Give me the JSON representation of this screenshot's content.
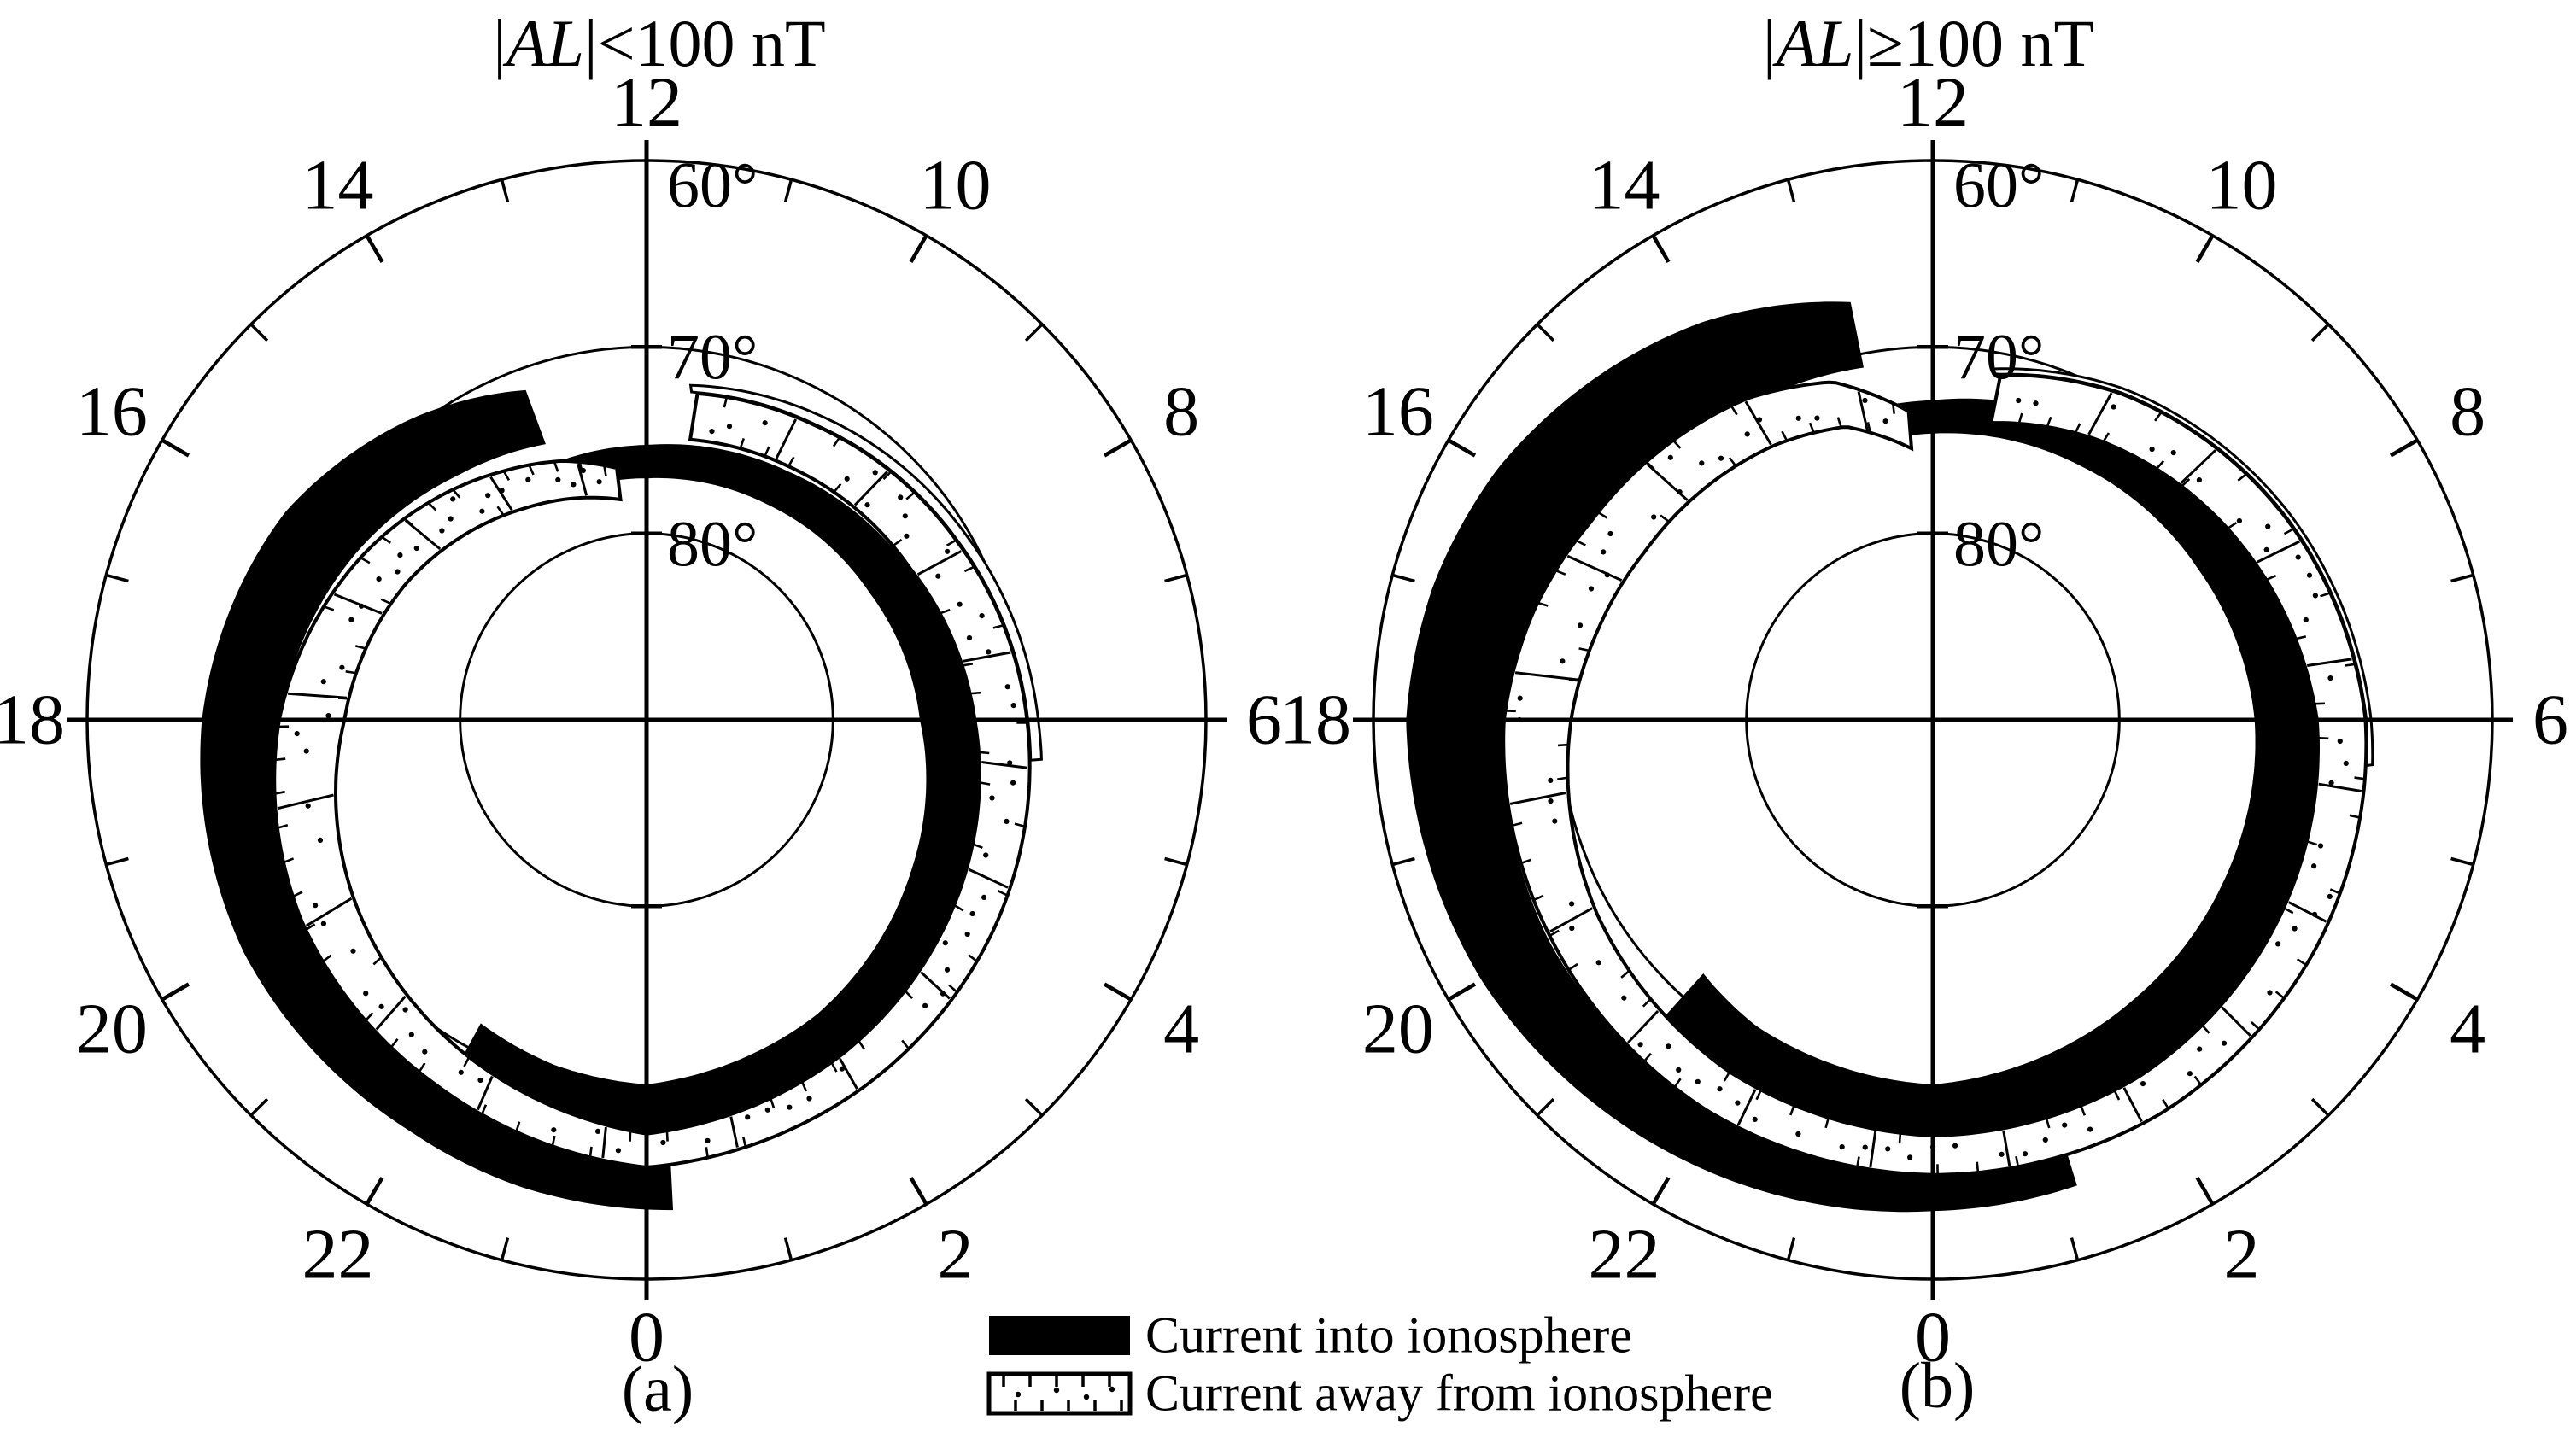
{
  "figure": {
    "kind": "polar field-aligned current statistical maps",
    "paper_color": "#ffffff",
    "ink_color": "#000000"
  },
  "legend": {
    "into_label": "Current into ionosphere",
    "away_label": "Current away from ionosphere",
    "into_swatch_fill": "#000000",
    "away_swatch_fill": "#ffffff"
  },
  "chart_data": {
    "type": "polar",
    "coordinate_system": "magnetic latitude vs magnetic local time (MLT), pole at center",
    "lat_rings_deg": [
      60,
      70,
      80
    ],
    "lat_ring_labels": [
      "60°",
      "70°",
      "80°"
    ],
    "mlt_hour_labels": [
      "0",
      "2",
      "4",
      "6",
      "8",
      "10",
      "12",
      "14",
      "16",
      "18",
      "20",
      "22"
    ],
    "band_legend_kinds": {
      "into": "filled black band",
      "away": "stippled white band"
    },
    "panels": [
      {
        "id": "a",
        "caption": "(a)",
        "title": {
          "pre": "|",
          "var": "AL",
          "post": "|<100 nT"
        },
        "bands": [
          {
            "kind": "into",
            "name": "dawn-region1-into",
            "profile": [
              [
                22.1,
                18.6,
                20.9
              ],
              [
                23,
                19.2,
                21.7
              ],
              [
                24,
                19.6,
                22.2
              ],
              [
                26,
                18.3,
                21.2
              ],
              [
                28,
                16.4,
                19.3
              ],
              [
                30,
                14.7,
                17.6
              ],
              [
                32,
                13.8,
                16.2
              ],
              [
                34,
                13.3,
                15.3
              ],
              [
                36,
                13.0,
                14.7
              ],
              [
                37.25,
                13.0,
                14.6
              ]
            ]
          },
          {
            "kind": "into",
            "name": "dusk-region2-into",
            "profile": [
              [
                13.35,
                15.8,
                18.8
              ],
              [
                14.5,
                16.6,
                20.4
              ],
              [
                16,
                18.0,
                22.3
              ],
              [
                18,
                19.7,
                23.8
              ],
              [
                20,
                21.2,
                24.9
              ],
              [
                22,
                22.5,
                25.4
              ],
              [
                23,
                23.3,
                25.9
              ],
              [
                24.25,
                24.0,
                26.3
              ]
            ]
          },
          {
            "kind": "away",
            "name": "away-spiral",
            "profile": [
              [
                12.45,
                11.9,
                13.6
              ],
              [
                13.2,
                12.5,
                14.6
              ],
              [
                14,
                13.1,
                15.4
              ],
              [
                16,
                14.8,
                17.6
              ],
              [
                18,
                16.2,
                19.7
              ],
              [
                20,
                18.3,
                21.4
              ],
              [
                22,
                20.3,
                22.6
              ],
              [
                24,
                22.2,
                24.0
              ],
              [
                26,
                20.8,
                22.9
              ],
              [
                28,
                19.2,
                21.7
              ],
              [
                30,
                17.6,
                20.4
              ],
              [
                32,
                16.3,
                19.2
              ],
              [
                34,
                15.6,
                18.2
              ],
              [
                35.45,
                15.2,
                17.7
              ]
            ]
          },
          {
            "kind": "sliver",
            "name": "dawn-boundary-sliver",
            "arc": [
              [
                35.5,
                18.1
              ],
              [
                34,
                18.8
              ],
              [
                32,
                19.8
              ],
              [
                30,
                21.0
              ],
              [
                29.6,
                21.3
              ]
            ]
          }
        ]
      },
      {
        "id": "b",
        "caption": "(b)",
        "title": {
          "pre": "|",
          "var": "AL",
          "post": "|≥100 nT"
        },
        "bands": [
          {
            "kind": "into",
            "name": "dawn-region1-into",
            "profile": [
              [
                21.2,
                18.4,
                21.4
              ],
              [
                22,
                19.0,
                21.9
              ],
              [
                24,
                19.6,
                22.3
              ],
              [
                26.4,
                18.5,
                22.0
              ],
              [
                28,
                17.9,
                21.3
              ],
              [
                30,
                17.3,
                20.6
              ],
              [
                32,
                16.4,
                19.3
              ],
              [
                34,
                15.8,
                18.0
              ],
              [
                36,
                15.4,
                17.1
              ],
              [
                36.6,
                15.3,
                17.0
              ]
            ]
          },
          {
            "kind": "into",
            "name": "dusk-region2-into",
            "profile": [
              [
                12.75,
                19.3,
                22.8
              ],
              [
                14,
                19.6,
                24.6
              ],
              [
                16,
                20.3,
                26.9
              ],
              [
                17,
                21.6,
                27.7
              ],
              [
                18,
                23.0,
                28.2
              ],
              [
                20,
                23.8,
                27.9
              ],
              [
                22,
                24.1,
                27.1
              ],
              [
                24,
                24.4,
                26.3
              ],
              [
                25.15,
                24.5,
                26.1
              ]
            ]
          },
          {
            "kind": "away",
            "name": "away-spiral",
            "profile": [
              [
                12.3,
                14.6,
                16.6
              ],
              [
                13.1,
                16.4,
                18.9
              ],
              [
                14,
                17.0,
                19.9
              ],
              [
                16,
                17.9,
                21.2
              ],
              [
                17,
                18.6,
                22.2
              ],
              [
                18,
                19.4,
                23.0
              ],
              [
                20,
                20.8,
                23.6
              ],
              [
                22,
                21.8,
                24.2
              ],
              [
                24,
                22.3,
                24.4
              ],
              [
                26,
                22.1,
                24.4
              ],
              [
                28,
                21.4,
                23.9
              ],
              [
                30,
                20.6,
                23.2
              ],
              [
                32,
                19.0,
                21.8
              ],
              [
                34,
                17.4,
                20.2
              ],
              [
                35.3,
                16.2,
                18.8
              ]
            ]
          },
          {
            "kind": "sliver",
            "name": "dawn-boundary-sliver",
            "arc": [
              [
                35.35,
                19.1
              ],
              [
                34,
                20.5
              ],
              [
                32,
                22.1
              ],
              [
                30,
                23.5
              ],
              [
                29.6,
                23.7
              ]
            ]
          }
        ]
      }
    ]
  }
}
